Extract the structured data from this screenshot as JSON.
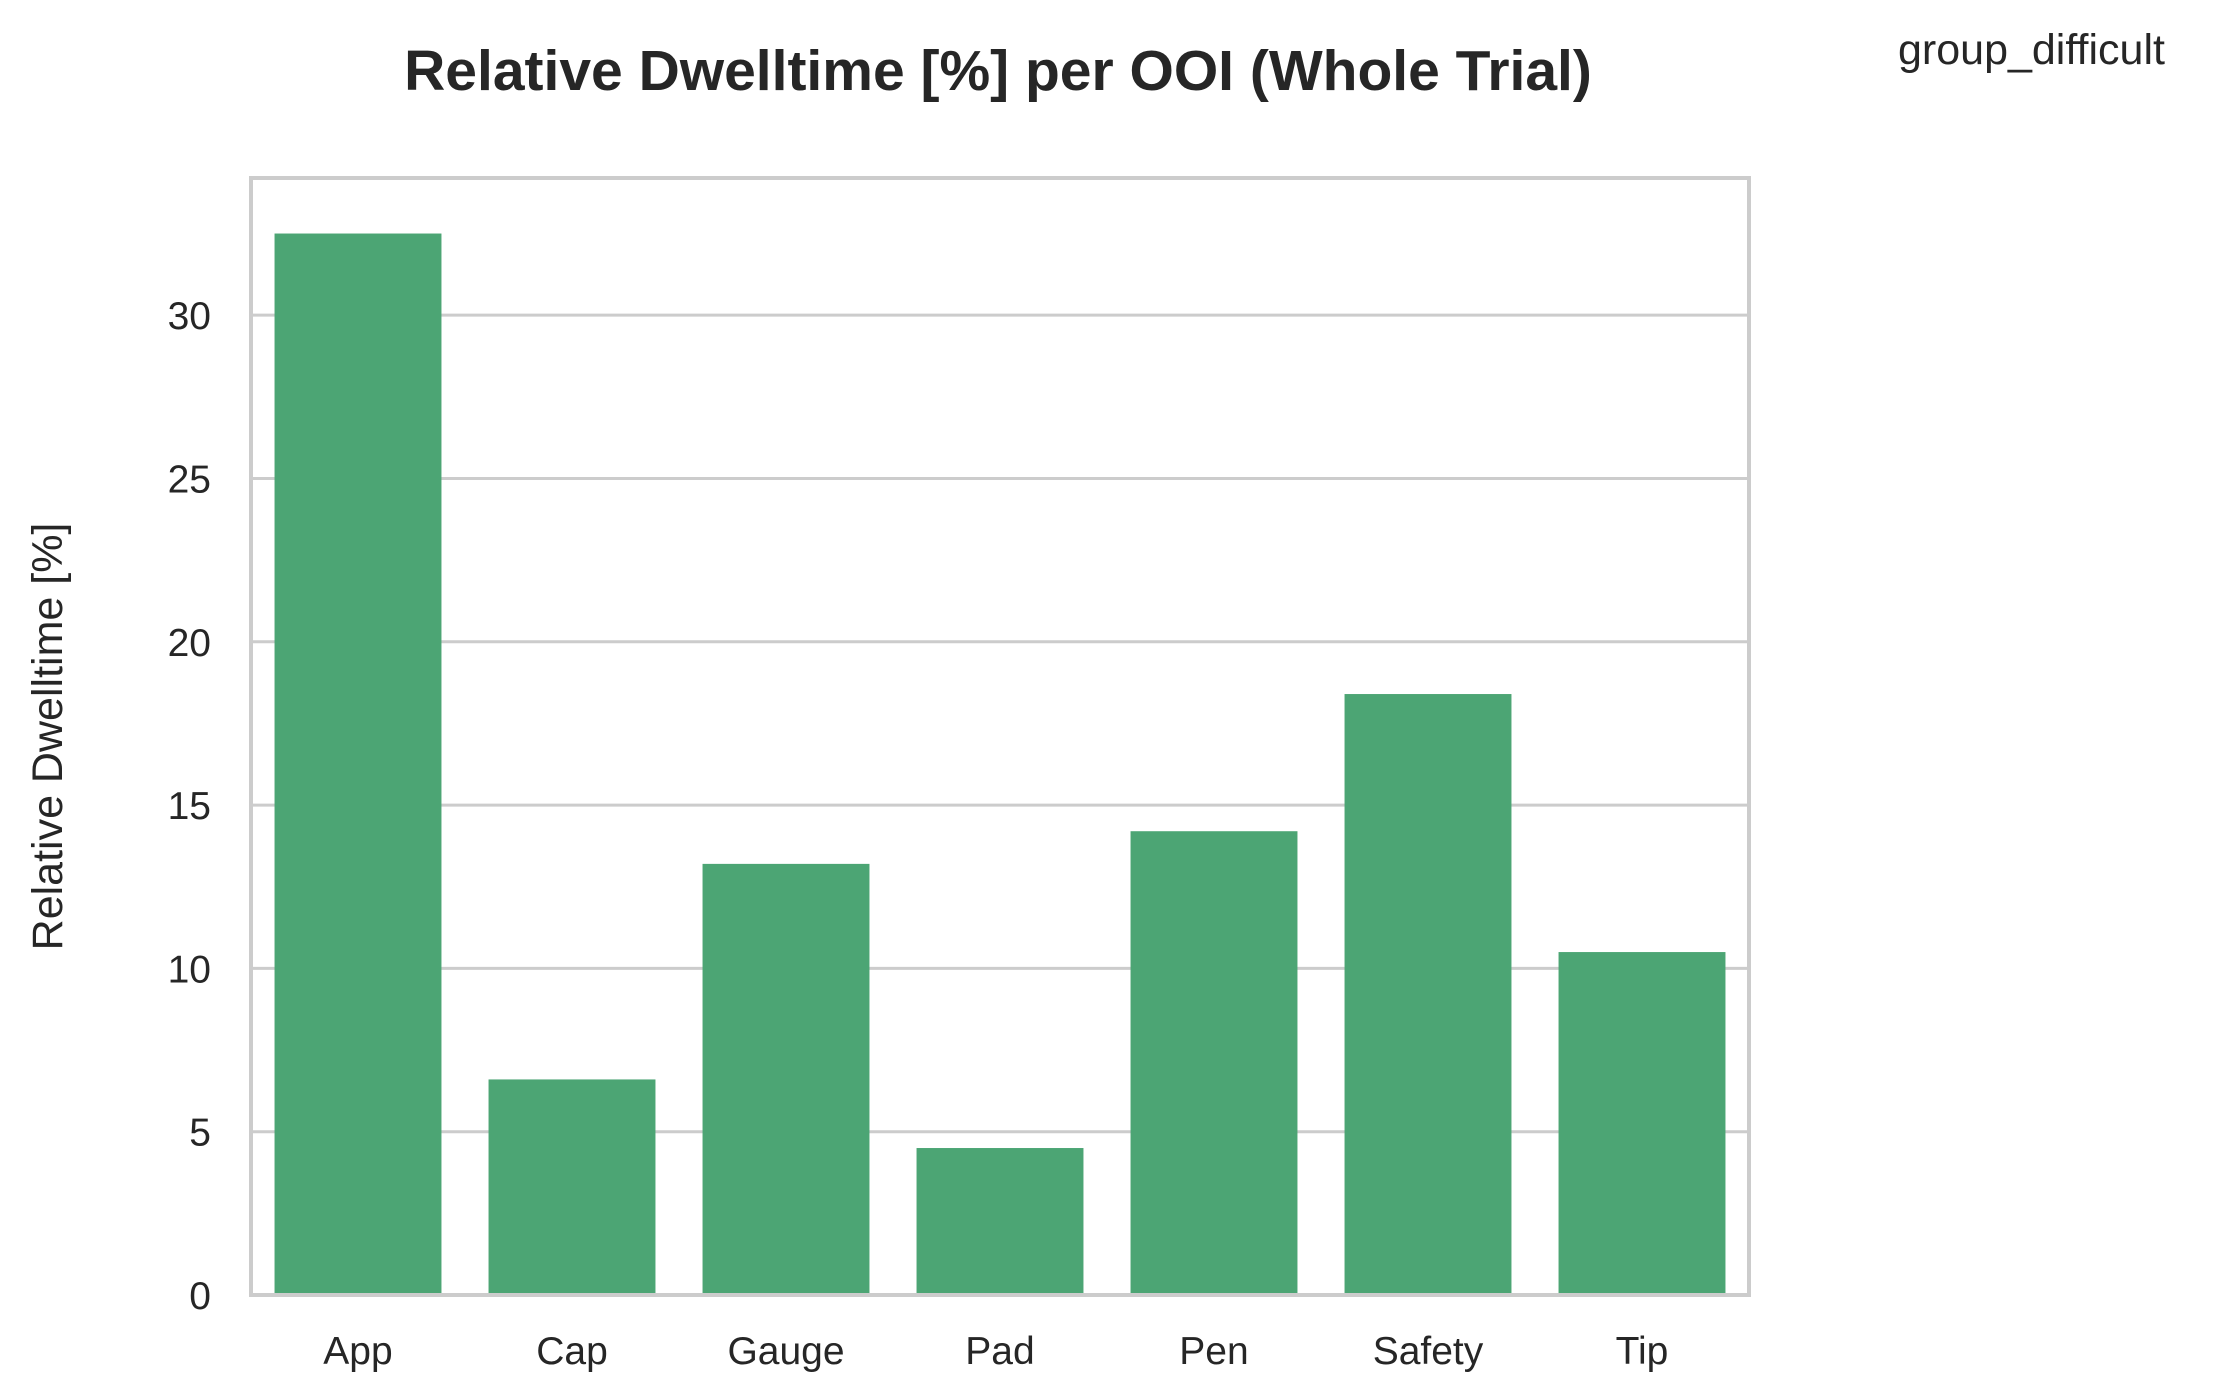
{
  "chart_data": {
    "type": "bar",
    "title": "Relative Dwelltime [%] per OOI (Whole Trial)",
    "xlabel": "",
    "ylabel": "Relative Dwelltime [%]",
    "legend_title": "group_difficult",
    "categories": [
      "App",
      "Cap",
      "Gauge",
      "Pad",
      "Pen",
      "Safety",
      "Tip"
    ],
    "values": [
      32.5,
      6.6,
      13.2,
      4.5,
      14.2,
      18.4,
      10.5
    ],
    "ylim": [
      0,
      34.2
    ],
    "yticks": [
      0,
      5,
      10,
      15,
      20,
      25,
      30
    ],
    "grid": "horizontal",
    "colors": {
      "bar": "#4ca574",
      "grid": "#cccccc",
      "frame": "#cccccc",
      "text": "#262626"
    }
  }
}
